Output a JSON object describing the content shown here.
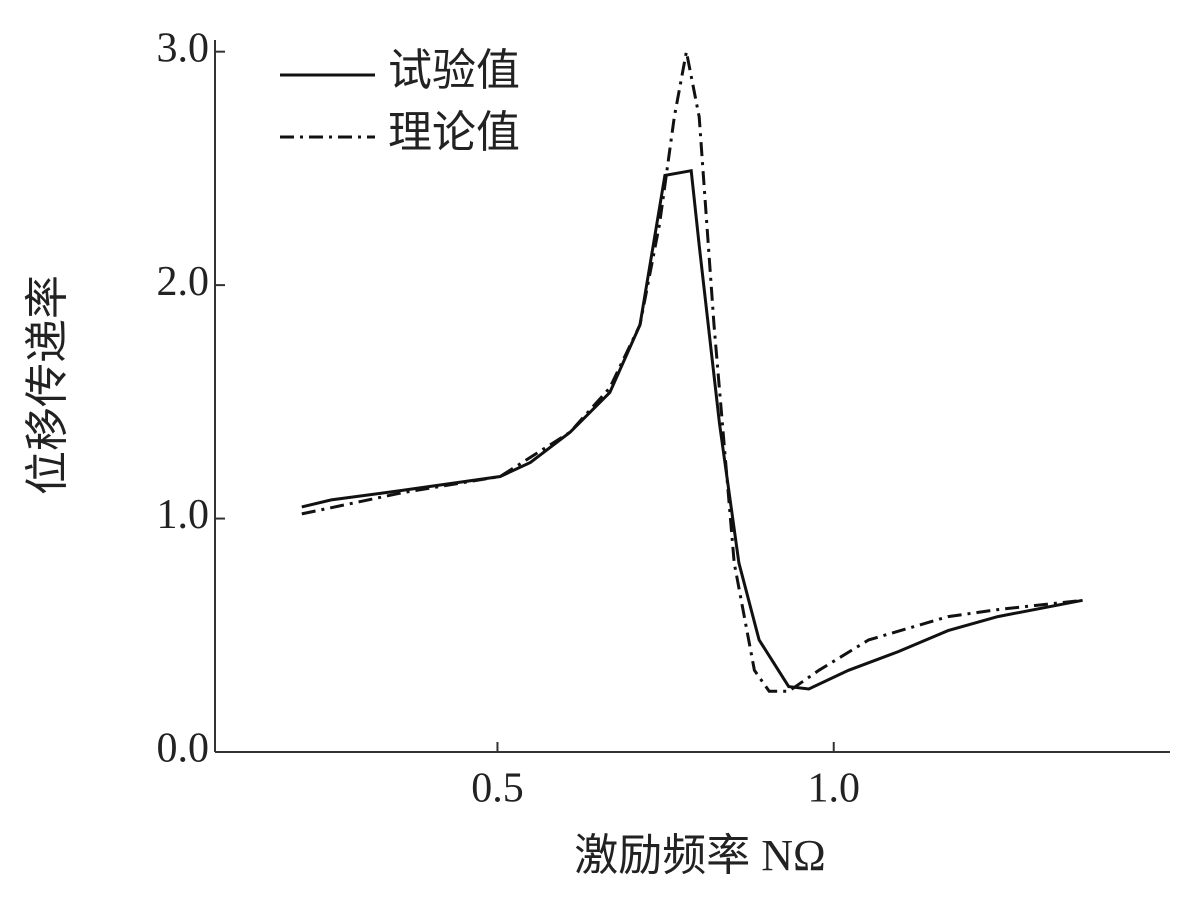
{
  "chart_data": {
    "type": "line",
    "xlabel": "激励频率 NΩ",
    "ylabel": "位移传递率",
    "xlim": [
      0.08,
      1.5
    ],
    "ylim": [
      0,
      3.05
    ],
    "xticks": [
      0.5,
      {
        "value": 1.0,
        "label": "1.0"
      }
    ],
    "yticks": [
      {
        "value": 0,
        "label": "0.0"
      },
      {
        "value": 1,
        "label": "1.0"
      },
      {
        "value": 2,
        "label": "2.0"
      },
      {
        "value": 3,
        "label": "3.0"
      }
    ],
    "legend": "upper left",
    "series": [
      {
        "name": "试验值",
        "color": "#111111",
        "linestyle": "solid",
        "x": [
          0.209,
          0.253,
          0.357,
          0.504,
          0.549,
          0.608,
          0.667,
          0.712,
          0.749,
          0.788,
          0.8,
          0.83,
          0.859,
          0.889,
          0.933,
          0.963,
          1.022,
          1.096,
          1.17,
          1.244,
          1.37
        ],
        "values": [
          1.05,
          1.08,
          1.12,
          1.18,
          1.24,
          1.37,
          1.54,
          1.83,
          2.47,
          2.49,
          2.17,
          1.41,
          0.81,
          0.48,
          0.28,
          0.27,
          0.35,
          0.43,
          0.52,
          0.58,
          0.65
        ]
      },
      {
        "name": "理论值",
        "color": "#111111",
        "linestyle": "dashdot",
        "x": [
          0.209,
          0.357,
          0.504,
          0.608,
          0.667,
          0.712,
          0.741,
          0.763,
          0.781,
          0.8,
          0.822,
          0.852,
          0.882,
          0.904,
          0.933,
          0.978,
          1.052,
          1.17,
          1.244,
          1.37
        ],
        "values": [
          1.02,
          1.11,
          1.18,
          1.37,
          1.56,
          1.83,
          2.26,
          2.72,
          3.0,
          2.72,
          1.83,
          0.81,
          0.35,
          0.26,
          0.26,
          0.35,
          0.48,
          0.58,
          0.61,
          0.65
        ]
      }
    ]
  }
}
